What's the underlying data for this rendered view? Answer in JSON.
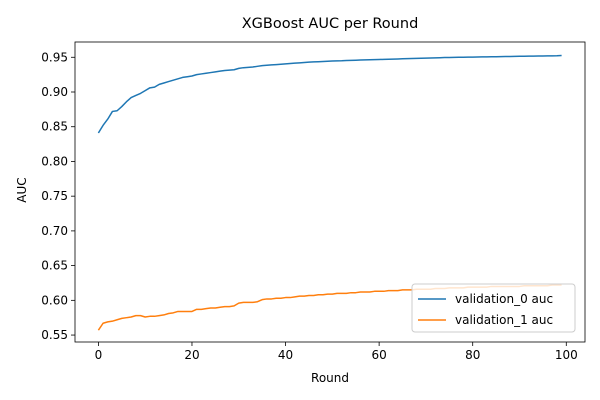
{
  "chart_data": {
    "type": "line",
    "title": "XGBoost AUC per Round",
    "xlabel": "Round",
    "ylabel": "AUC",
    "xlim": [
      -5,
      104
    ],
    "ylim": [
      0.54,
      0.972
    ],
    "xticks": [
      0,
      20,
      40,
      60,
      80,
      100
    ],
    "xtick_labels": [
      "0",
      "20",
      "40",
      "60",
      "80",
      "100"
    ],
    "yticks": [
      0.55,
      0.6,
      0.65,
      0.7,
      0.75,
      0.8,
      0.85,
      0.9,
      0.95
    ],
    "ytick_labels": [
      "0.55",
      "0.60",
      "0.65",
      "0.70",
      "0.75",
      "0.80",
      "0.85",
      "0.90",
      "0.95"
    ],
    "grid": false,
    "legend_position": "lower-right",
    "x": [
      0,
      1,
      2,
      3,
      4,
      5,
      6,
      7,
      8,
      9,
      10,
      11,
      12,
      13,
      14,
      15,
      16,
      17,
      18,
      19,
      20,
      21,
      22,
      23,
      24,
      25,
      26,
      27,
      28,
      29,
      30,
      31,
      32,
      33,
      34,
      35,
      36,
      37,
      38,
      39,
      40,
      41,
      42,
      43,
      44,
      45,
      46,
      47,
      48,
      49,
      50,
      51,
      52,
      53,
      54,
      55,
      56,
      57,
      58,
      59,
      60,
      61,
      62,
      63,
      64,
      65,
      66,
      67,
      68,
      69,
      70,
      71,
      72,
      73,
      74,
      75,
      76,
      77,
      78,
      79,
      80,
      81,
      82,
      83,
      84,
      85,
      86,
      87,
      88,
      89,
      90,
      91,
      92,
      93,
      94,
      95,
      96,
      97,
      98,
      99
    ],
    "series": [
      {
        "name": "validation_0 auc",
        "color": "#1f77b4",
        "values": [
          0.841,
          0.852,
          0.861,
          0.872,
          0.873,
          0.879,
          0.886,
          0.892,
          0.895,
          0.898,
          0.902,
          0.906,
          0.907,
          0.911,
          0.913,
          0.915,
          0.917,
          0.919,
          0.921,
          0.922,
          0.923,
          0.925,
          0.926,
          0.927,
          0.928,
          0.929,
          0.93,
          0.931,
          0.9315,
          0.932,
          0.934,
          0.935,
          0.9355,
          0.936,
          0.937,
          0.938,
          0.9385,
          0.939,
          0.9395,
          0.94,
          0.9405,
          0.941,
          0.9415,
          0.942,
          0.9425,
          0.943,
          0.9433,
          0.9436,
          0.944,
          0.9443,
          0.9446,
          0.9449,
          0.945,
          0.9453,
          0.9456,
          0.9458,
          0.946,
          0.9462,
          0.9464,
          0.9466,
          0.9468,
          0.947,
          0.9472,
          0.9474,
          0.9476,
          0.9478,
          0.948,
          0.9482,
          0.9484,
          0.9486,
          0.9488,
          0.949,
          0.9492,
          0.9494,
          0.9496,
          0.9497,
          0.9498,
          0.95,
          0.9501,
          0.9502,
          0.9503,
          0.9504,
          0.9505,
          0.9506,
          0.9507,
          0.9508,
          0.951,
          0.9511,
          0.9512,
          0.9513,
          0.9514,
          0.9515,
          0.9516,
          0.9517,
          0.9518,
          0.9519,
          0.952,
          0.9521,
          0.9522,
          0.9525
        ]
      },
      {
        "name": "validation_1 auc",
        "color": "#ff7f0e",
        "values": [
          0.557,
          0.567,
          0.569,
          0.57,
          0.572,
          0.574,
          0.575,
          0.576,
          0.578,
          0.578,
          0.576,
          0.577,
          0.577,
          0.578,
          0.579,
          0.581,
          0.582,
          0.584,
          0.584,
          0.584,
          0.584,
          0.587,
          0.587,
          0.588,
          0.589,
          0.589,
          0.59,
          0.591,
          0.591,
          0.592,
          0.596,
          0.597,
          0.597,
          0.597,
          0.598,
          0.601,
          0.602,
          0.602,
          0.603,
          0.603,
          0.604,
          0.604,
          0.605,
          0.606,
          0.606,
          0.607,
          0.607,
          0.608,
          0.608,
          0.609,
          0.609,
          0.61,
          0.61,
          0.61,
          0.611,
          0.611,
          0.612,
          0.612,
          0.612,
          0.613,
          0.613,
          0.613,
          0.614,
          0.614,
          0.614,
          0.615,
          0.615,
          0.615,
          0.616,
          0.616,
          0.616,
          0.616,
          0.617,
          0.617,
          0.617,
          0.618,
          0.618,
          0.618,
          0.618,
          0.619,
          0.619,
          0.619,
          0.619,
          0.619,
          0.62,
          0.62,
          0.62,
          0.62,
          0.62,
          0.62,
          0.62,
          0.621,
          0.621,
          0.621,
          0.621,
          0.621,
          0.621,
          0.622,
          0.622,
          0.622
        ]
      }
    ]
  }
}
